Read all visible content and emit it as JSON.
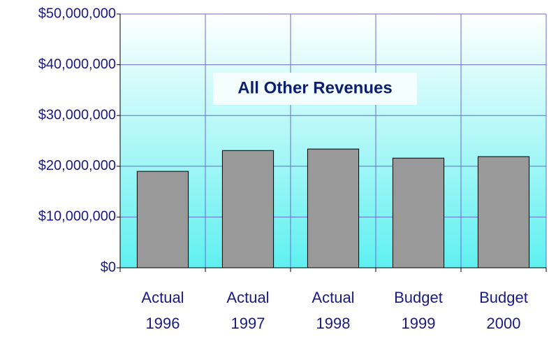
{
  "chart_data": {
    "type": "bar",
    "title": "All Other Revenues",
    "categories": [
      "Actual 1996",
      "Actual 1997",
      "Actual 1998",
      "Budget 1999",
      "Budget 2000"
    ],
    "values": [
      19000000,
      23100000,
      23400000,
      21600000,
      21900000
    ],
    "color": "#999999",
    "ylim": [
      0,
      50000000
    ],
    "yticks": [
      {
        "value": 0,
        "label": "$0"
      },
      {
        "value": 10000000,
        "label": "$10,000,000"
      },
      {
        "value": 20000000,
        "label": "$20,000,000"
      },
      {
        "value": 30000000,
        "label": "$30,000,000"
      },
      {
        "value": 40000000,
        "label": "$40,000,000"
      },
      {
        "value": 50000000,
        "label": "$50,000,000"
      }
    ],
    "grid": true
  }
}
